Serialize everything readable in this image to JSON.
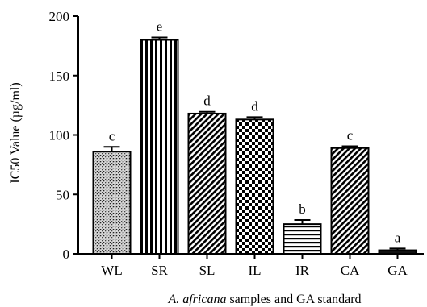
{
  "chart_data": {
    "type": "bar",
    "categories": [
      "WL",
      "SR",
      "SL",
      "IL",
      "IR",
      "CA",
      "GA"
    ],
    "values": [
      86,
      180,
      118,
      113,
      25,
      89,
      3
    ],
    "errors": [
      4,
      2,
      1.5,
      2,
      3.5,
      1.5,
      1.5
    ],
    "significance": [
      "c",
      "e",
      "d",
      "d",
      "b",
      "c",
      "a"
    ],
    "patterns": [
      "stipple",
      "vertical-stripes",
      "diagonal",
      "checker",
      "horizontal-stripes",
      "diagonal",
      "solid"
    ],
    "ylim": [
      0,
      200
    ],
    "yticks": [
      0,
      50,
      100,
      150,
      200
    ],
    "ylabel": "IC50 Value (µg/ml)",
    "xlabel_italic": "A. africana",
    "xlabel_rest": " samples and GA standard",
    "grid": false
  }
}
